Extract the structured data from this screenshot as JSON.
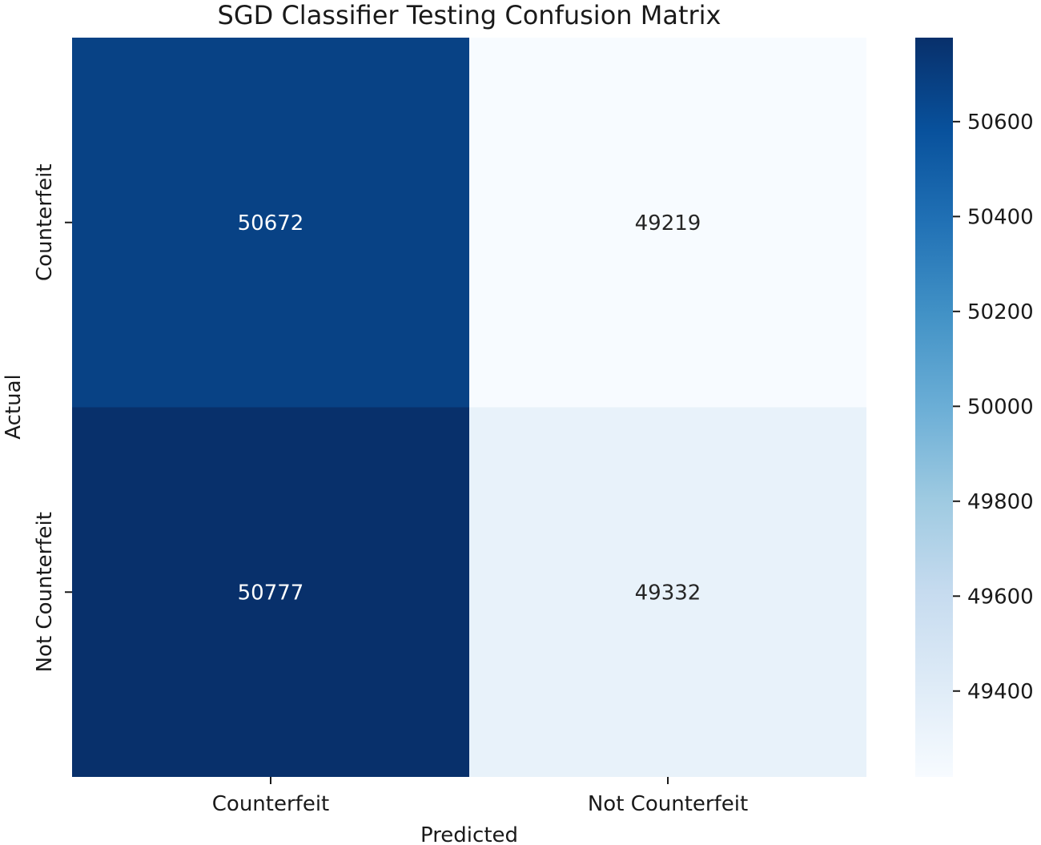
{
  "chart_data": {
    "type": "heatmap",
    "title": "SGD Classifier Testing Confusion Matrix",
    "xlabel": "Predicted",
    "ylabel": "Actual",
    "x_categories": [
      "Counterfeit",
      "Not Counterfeit"
    ],
    "y_categories": [
      "Counterfeit",
      "Not Counterfeit"
    ],
    "values": [
      [
        50672,
        49219
      ],
      [
        50777,
        49332
      ]
    ],
    "value_labels": [
      [
        "50672",
        "49219"
      ],
      [
        "50777",
        "49332"
      ]
    ],
    "colorbar": {
      "colormap": "Blues",
      "range": [
        49219,
        50777
      ],
      "ticks": [
        50600,
        50400,
        50200,
        50000,
        49800,
        49600,
        49400
      ],
      "tick_labels": [
        "50600",
        "50400",
        "50200",
        "50000",
        "49800",
        "49600",
        "49400"
      ]
    },
    "grid": false
  }
}
